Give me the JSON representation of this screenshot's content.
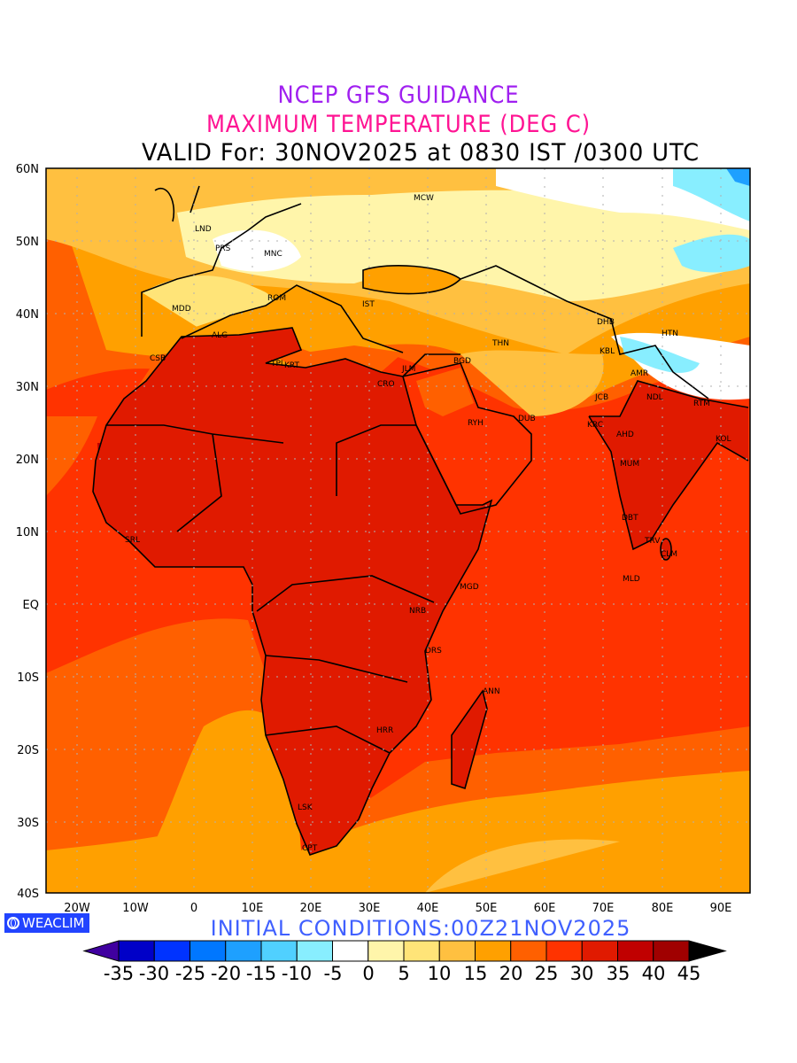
{
  "titles": {
    "line1": "NCEP GFS GUIDANCE",
    "line2": "MAXIMUM TEMPERATURE (DEG C)",
    "line3": "VALID For: 30NOV2025 at 0830 IST /0300 UTC"
  },
  "initial_conditions": "INITIAL CONDITIONS:00Z21NOV2025",
  "logo": {
    "text": "WEACLIM",
    "icon": "copyright-circle-icon"
  },
  "axes": {
    "lat_labels": [
      "60N",
      "50N",
      "40N",
      "30N",
      "20N",
      "10N",
      "EQ",
      "10S",
      "20S",
      "30S",
      "40S"
    ],
    "lon_labels": [
      "20W",
      "10W",
      "0",
      "10E",
      "20E",
      "30E",
      "40E",
      "50E",
      "60E",
      "70E",
      "80E",
      "90E"
    ]
  },
  "cities": [
    "MCW",
    "LND",
    "PRS",
    "MNC",
    "MDD",
    "ROM",
    "IST",
    "ALG",
    "CSB",
    "TPL",
    "KRT",
    "CRO",
    "JLM",
    "BGD",
    "THN",
    "DHB",
    "HTN",
    "KBL",
    "AMR",
    "JCB",
    "NDL",
    "RTM",
    "RYH",
    "DUB",
    "KRC",
    "AHD",
    "KOL",
    "MUM",
    "DBT",
    "TRV",
    "CLM",
    "MLD",
    "SRL",
    "MGD",
    "NRB",
    "DRS",
    "ANN",
    "HRR",
    "LSK",
    "CPT"
  ],
  "colorbar": {
    "labels": [
      "-35",
      "-30",
      "-25",
      "-20",
      "-15",
      "-10",
      "-5",
      "0",
      "5",
      "10",
      "15",
      "20",
      "25",
      "30",
      "35",
      "40",
      "45"
    ],
    "colors": [
      "#0000c8",
      "#0033ff",
      "#0077ff",
      "#1ea0ff",
      "#50d0ff",
      "#88eeff",
      "#ffffff",
      "#fff5aa",
      "#ffe478",
      "#ffc040",
      "#ffa000",
      "#ff6000",
      "#ff3300",
      "#e01a00",
      "#c00000",
      "#a00000"
    ],
    "under_color": "#4000a0",
    "over_color": "#000000"
  }
}
